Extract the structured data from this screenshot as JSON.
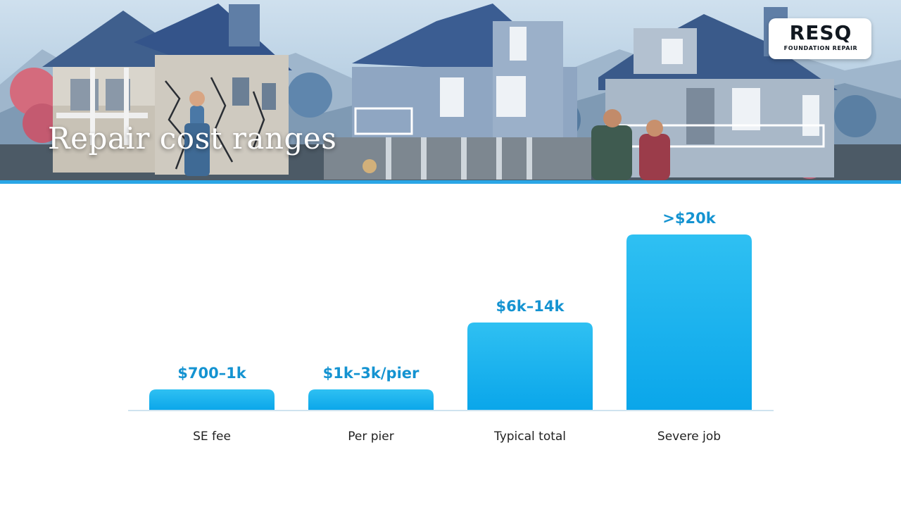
{
  "hero": {
    "title": "Repair cost ranges",
    "logo": {
      "wordmark": "RESQ",
      "tagline": "FOUNDATION REPAIR"
    },
    "accent_color": "#2aa6e6"
  },
  "chart_data": {
    "type": "bar",
    "categories": [
      "SE fee",
      "Per pier",
      "Typical total",
      "Severe job"
    ],
    "values": [
      850,
      2000,
      10000,
      20000
    ],
    "data_labels": [
      "$700–1k",
      "$1k–3k/pier",
      "$6k–14k",
      ">$20k"
    ],
    "title": "",
    "xlabel": "",
    "ylabel": "",
    "ylim": [
      0,
      20000
    ],
    "bar_color": "#29b3ee",
    "grid": false
  }
}
